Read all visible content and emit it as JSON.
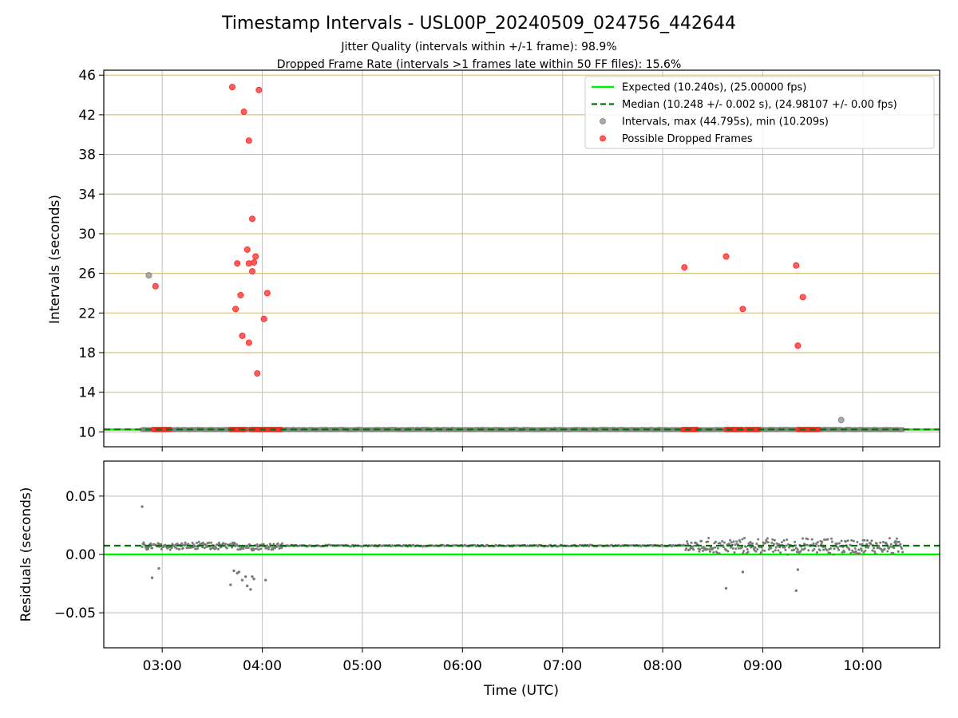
{
  "chart_data": [
    {
      "type": "scatter",
      "panel": "top",
      "title": "Timestamp Intervals - USL00P_20240509_024756_442644",
      "subtitle_1": "Jitter Quality (intervals within +/-1 frame): 98.9%",
      "subtitle_2": "Dropped Frame Rate (intervals >1 frames late within 50 FF files): 15.6%",
      "ylabel": "Intervals (seconds)",
      "ylim": [
        8.5,
        46.5
      ],
      "xlim": [
        "02:25",
        "10:46"
      ],
      "yticks": [
        "10",
        "14",
        "18",
        "22",
        "26",
        "30",
        "34",
        "38",
        "42",
        "46"
      ],
      "grid": "on",
      "legend_position": "top-right",
      "legend": [
        {
          "label": "Expected (10.240s), (25.00000 fps)",
          "style": "solid-line",
          "color": "#00ee00"
        },
        {
          "label": "Median (10.248 +/- 0.002 s), (24.98107 +/- 0.00 fps)",
          "style": "dashed-line",
          "color": "#007700"
        },
        {
          "label": "Intervals, max (44.795s), min (10.209s)",
          "style": "marker",
          "color": "#808080"
        },
        {
          "label": "Possible Dropped Frames",
          "style": "marker",
          "color": "#ff3333"
        }
      ],
      "expected": 10.24,
      "median": 10.248,
      "series": [
        {
          "name": "Intervals, max (44.795s), min (10.209s)",
          "baseline_segment": {
            "x_start": "02:48",
            "x_end": "10:24",
            "y": 10.248
          },
          "points": [
            {
              "x": "02:52",
              "y": 25.8
            },
            {
              "x": "09:47",
              "y": 11.2
            }
          ]
        },
        {
          "name": "Possible Dropped Frames",
          "points": [
            {
              "x": "02:56",
              "y": 24.7
            },
            {
              "x": "03:42",
              "y": 44.8
            },
            {
              "x": "03:44",
              "y": 22.4
            },
            {
              "x": "03:45",
              "y": 27.0
            },
            {
              "x": "03:47",
              "y": 23.8
            },
            {
              "x": "03:48",
              "y": 19.7
            },
            {
              "x": "03:49",
              "y": 42.3
            },
            {
              "x": "03:51",
              "y": 28.4
            },
            {
              "x": "03:52",
              "y": 27.0
            },
            {
              "x": "03:52",
              "y": 39.4
            },
            {
              "x": "03:52",
              "y": 19.0
            },
            {
              "x": "03:54",
              "y": 31.5
            },
            {
              "x": "03:54",
              "y": 26.2
            },
            {
              "x": "03:55",
              "y": 27.1
            },
            {
              "x": "03:56",
              "y": 27.7
            },
            {
              "x": "03:57",
              "y": 15.9
            },
            {
              "x": "03:58",
              "y": 44.5
            },
            {
              "x": "04:01",
              "y": 21.4
            },
            {
              "x": "04:03",
              "y": 24.0
            },
            {
              "x": "08:13",
              "y": 26.6
            },
            {
              "x": "08:38",
              "y": 27.7
            },
            {
              "x": "08:48",
              "y": 22.4
            },
            {
              "x": "09:20",
              "y": 26.8
            },
            {
              "x": "09:21",
              "y": 18.7
            },
            {
              "x": "09:24",
              "y": 23.6
            }
          ],
          "baseline_clusters": [
            {
              "x_start": "02:55",
              "x_end": "03:05",
              "y": 10.24
            },
            {
              "x_start": "03:41",
              "y_note": "",
              "x_end": "03:50",
              "y": 10.24
            },
            {
              "x_start": "03:53",
              "x_end": "04:12",
              "y": 10.24
            },
            {
              "x_start": "08:12",
              "x_end": "08:21",
              "y": 10.24
            },
            {
              "x_start": "08:38",
              "x_end": "08:48",
              "y": 10.24
            },
            {
              "x_start": "08:50",
              "x_end": "08:58",
              "y": 10.24
            },
            {
              "x_start": "09:21",
              "x_end": "09:34",
              "y": 10.24
            }
          ]
        }
      ]
    },
    {
      "type": "scatter",
      "panel": "bottom",
      "xlabel": "Time (UTC)",
      "ylabel": "Residuals (seconds)",
      "ylim": [
        -0.08,
        0.08
      ],
      "yticks": [
        "0.05",
        "0.00",
        "−0.05"
      ],
      "xticks": [
        "03:00",
        "04:00",
        "05:00",
        "06:00",
        "07:00",
        "08:00",
        "09:00",
        "10:00"
      ],
      "grid": "on",
      "expected": 0.0,
      "median": 0.0075,
      "series": [
        {
          "name": "Residuals",
          "color": "#808080",
          "dense_bands": [
            {
              "x_start": "02:48",
              "x_end": "04:12",
              "y_center": 0.007,
              "spread": 0.004
            },
            {
              "x_start": "04:12",
              "x_end": "08:12",
              "y_center": 0.0075,
              "spread": 0.0008
            },
            {
              "x_start": "08:12",
              "x_end": "10:24",
              "y_center": 0.007,
              "spread": 0.008
            }
          ],
          "points": [
            {
              "x": "02:48",
              "y": 0.041
            },
            {
              "x": "02:54",
              "y": -0.02
            },
            {
              "x": "02:58",
              "y": -0.012
            },
            {
              "x": "03:41",
              "y": -0.026
            },
            {
              "x": "03:43",
              "y": -0.014
            },
            {
              "x": "03:45",
              "y": -0.016
            },
            {
              "x": "03:46",
              "y": -0.015
            },
            {
              "x": "03:48",
              "y": -0.022
            },
            {
              "x": "03:50",
              "y": -0.019
            },
            {
              "x": "03:51",
              "y": -0.027
            },
            {
              "x": "03:53",
              "y": -0.03
            },
            {
              "x": "03:54",
              "y": -0.019
            },
            {
              "x": "03:55",
              "y": -0.021
            },
            {
              "x": "04:02",
              "y": -0.022
            },
            {
              "x": "08:38",
              "y": -0.029
            },
            {
              "x": "08:48",
              "y": -0.015
            },
            {
              "x": "09:20",
              "y": -0.031
            },
            {
              "x": "09:21",
              "y": -0.013
            }
          ]
        }
      ]
    }
  ]
}
